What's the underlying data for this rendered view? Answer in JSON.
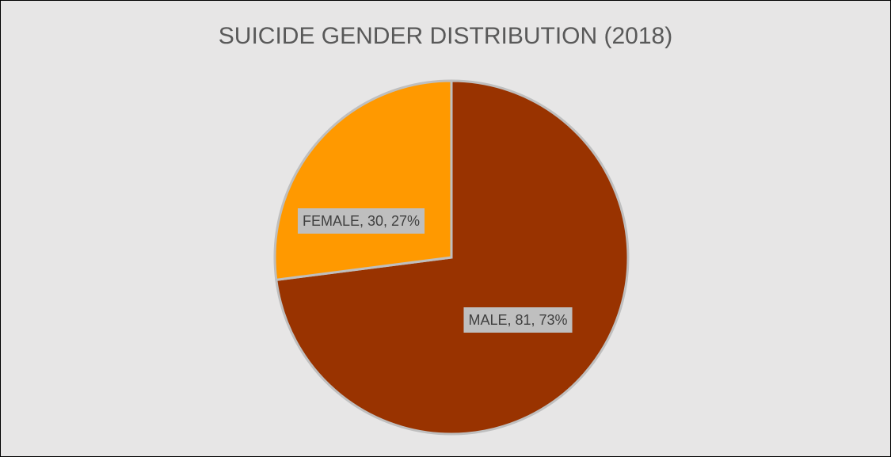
{
  "chart_data": {
    "type": "pie",
    "title": "SUICIDE GENDER DISTRIBUTION (2018)",
    "slices": [
      {
        "name": "MALE",
        "value": 81,
        "percent": "73%",
        "label": "MALE, 81, 73%",
        "color": "#993300"
      },
      {
        "name": "FEMALE",
        "value": 30,
        "percent": "27%",
        "label": "FEMALE, 30, 27%",
        "color": "#ff9900"
      }
    ],
    "legend": "none",
    "background": "#e7e6e6",
    "label_background": "#bfbfbf",
    "separator_color": "#bfbfbf"
  }
}
